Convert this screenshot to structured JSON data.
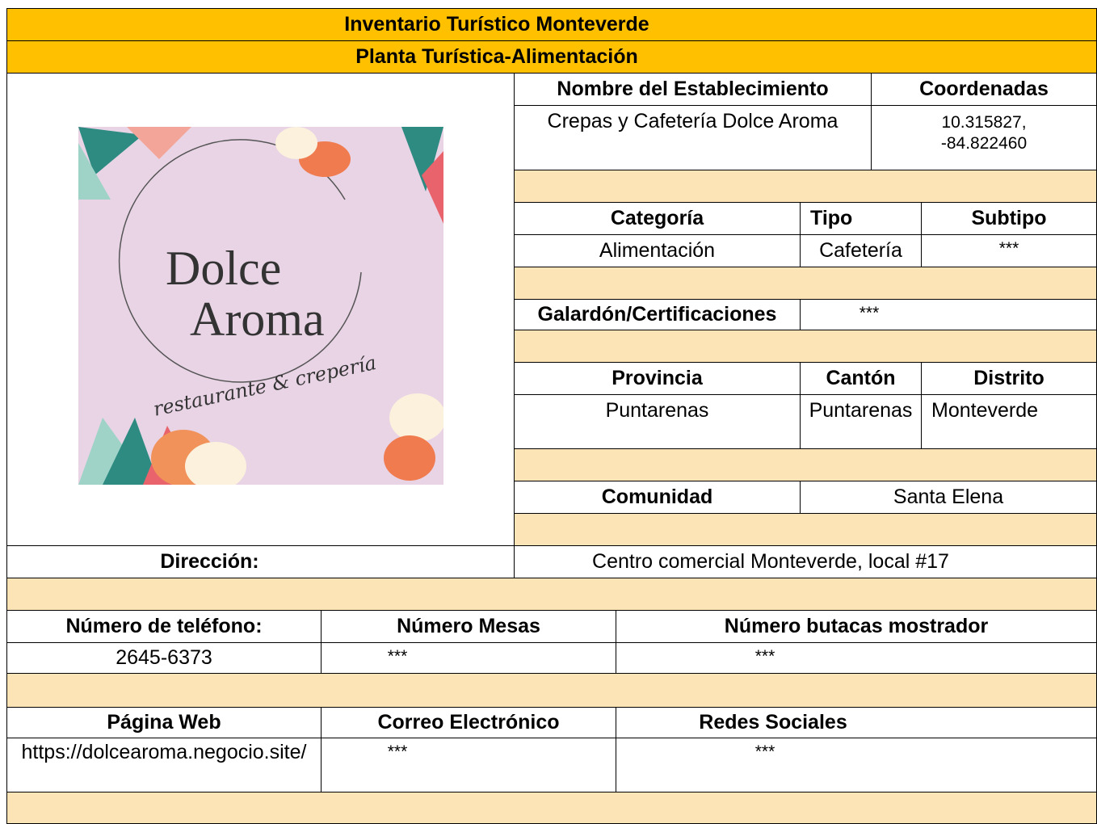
{
  "header": {
    "title": "Inventario Turístico Monteverde",
    "subtitle": "Planta Turística-Alimentación"
  },
  "logo": {
    "line1": "Dolce",
    "line2": "Aroma",
    "tagline": "restaurante & crepería"
  },
  "establishment": {
    "name_label": "Nombre del Establecimiento",
    "name": "Crepas y Cafetería Dolce Aroma",
    "coords_label": "Coordenadas",
    "coords": "10.315827, -84.822460"
  },
  "classification": {
    "category_label": "Categoría",
    "category": "Alimentación",
    "type_label": "Tipo",
    "type": "Cafetería",
    "subtype_label": "Subtipo",
    "subtype": "***"
  },
  "awards": {
    "label": "Galardón/Certificaciones",
    "value": "***"
  },
  "location": {
    "province_label": "Provincia",
    "province": "Puntarenas",
    "canton_label": "Cantón",
    "canton": "Puntarenas",
    "district_label": "Distrito",
    "district": "Monteverde",
    "community_label": "Comunidad",
    "community": "Santa Elena",
    "address_label": "Dirección:",
    "address": "Centro comercial Monteverde, local #17"
  },
  "contact": {
    "phone_label": "Número de teléfono:",
    "phone": "2645-6373",
    "tables_label": "Número Mesas",
    "tables": "***",
    "counter_seats_label": "Número butacas mostrador",
    "counter_seats": "***",
    "web_label": "Página Web",
    "web": "https://dolcearoma.negocio.site/",
    "email_label": "Correo Electrónico",
    "email": "***",
    "social_label": "Redes Sociales",
    "social": "***"
  }
}
